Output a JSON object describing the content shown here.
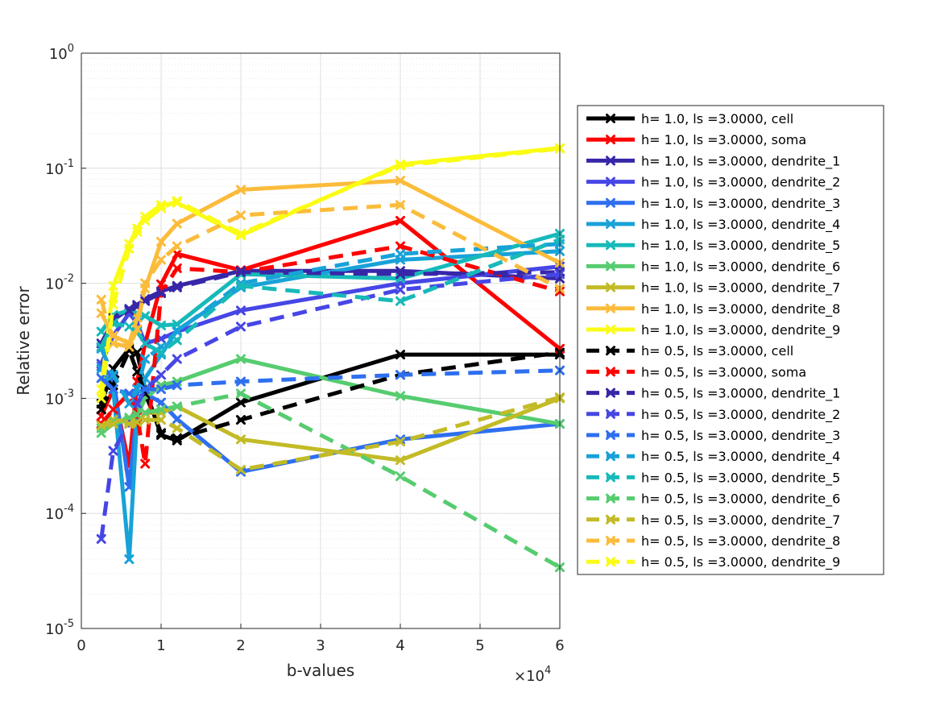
{
  "chart_data": {
    "type": "line",
    "xlabel": "b-values",
    "ylabel": "Relative error",
    "x_multiplier_label": "×10",
    "x_multiplier_exponent": "4",
    "x_scale": 10000,
    "xlim": [
      0,
      60000
    ],
    "ylim": [
      1e-05,
      1
    ],
    "y_scale": "log",
    "grid": true,
    "legend_position": "right",
    "x_ticks": [
      0,
      10000,
      20000,
      30000,
      40000,
      50000,
      60000
    ],
    "x_tick_labels": [
      "0",
      "1",
      "2",
      "3",
      "4",
      "5",
      "6"
    ],
    "y_ticks": [
      1e-05,
      0.0001,
      0.001,
      0.01,
      0.1,
      1
    ],
    "y_tick_bases": [
      "10",
      "10",
      "10",
      "10",
      "10",
      "10"
    ],
    "y_tick_exponents": [
      "-5",
      "-4",
      "-3",
      "-2",
      "-1",
      "0"
    ],
    "x": [
      2500,
      4000,
      6000,
      7000,
      8000,
      10000,
      12000,
      20000,
      40000,
      60000
    ],
    "series": [
      {
        "name": "h= 1.0, ls =3.0000, cell",
        "color": "#000000",
        "dash": "solid",
        "values": [
          0.0009,
          0.0018,
          0.0027,
          0.0025,
          0.0012,
          0.00048,
          0.00043,
          0.00092,
          0.0024,
          0.0024
        ]
      },
      {
        "name": "h= 1.0, ls =3.0000, soma",
        "color": "#ff0000",
        "dash": "solid",
        "values": [
          0.0007,
          0.0012,
          0.00026,
          0.0014,
          0.003,
          0.0098,
          0.018,
          0.013,
          0.035,
          0.0027
        ]
      },
      {
        "name": "h= 1.0, ls =3.0000, dendrite_1",
        "color": "#3727a8",
        "dash": "solid",
        "values": [
          0.003,
          0.0048,
          0.006,
          0.0065,
          0.0073,
          0.0085,
          0.0095,
          0.0128,
          0.0128,
          0.011
        ]
      },
      {
        "name": "h= 1.0, ls =3.0000, dendrite_2",
        "color": "#4646e6",
        "dash": "solid",
        "values": [
          0.002,
          0.0035,
          0.0055,
          0.0045,
          0.003,
          0.0033,
          0.0038,
          0.0058,
          0.01,
          0.014
        ]
      },
      {
        "name": "h= 1.0, ls =3.0000, dendrite_3",
        "color": "#2e6ff0",
        "dash": "solid",
        "values": [
          0.0019,
          0.0015,
          0.00017,
          0.0008,
          0.0011,
          0.00092,
          0.00066,
          0.00023,
          0.00044,
          0.0006
        ]
      },
      {
        "name": "h= 1.0, ls =3.0000, dendrite_4",
        "color": "#18a2d8",
        "dash": "solid",
        "values": [
          0.0018,
          0.0012,
          4e-05,
          0.0007,
          0.0015,
          0.0024,
          0.0039,
          0.0092,
          0.016,
          0.019
        ]
      },
      {
        "name": "h= 1.0, ls =3.0000, dendrite_5",
        "color": "#17b9b9",
        "dash": "solid",
        "values": [
          0.0038,
          0.0053,
          0.0058,
          0.0055,
          0.0052,
          0.0043,
          0.0044,
          0.012,
          0.011,
          0.027
        ]
      },
      {
        "name": "h= 1.0, ls =3.0000, dendrite_6",
        "color": "#56cc6f",
        "dash": "solid",
        "values": [
          0.0005,
          0.0006,
          0.00065,
          0.0007,
          0.001,
          0.0013,
          0.0014,
          0.0022,
          0.00105,
          0.0006
        ]
      },
      {
        "name": "h= 1.0, ls =3.0000, dendrite_7",
        "color": "#c2bb27",
        "dash": "solid",
        "values": [
          0.0006,
          0.00065,
          0.00063,
          0.0006,
          0.00075,
          0.00075,
          0.00085,
          0.00044,
          0.00029,
          0.001
        ]
      },
      {
        "name": "h= 1.0, ls =3.0000, dendrite_8",
        "color": "#fbbc3b",
        "dash": "solid",
        "values": [
          0.0055,
          0.0035,
          0.003,
          0.005,
          0.009,
          0.023,
          0.033,
          0.065,
          0.078,
          0.015
        ]
      },
      {
        "name": "h= 1.0, ls =3.0000, dendrite_9",
        "color": "#fafc14",
        "dash": "solid",
        "values": [
          0.0012,
          0.0095,
          0.022,
          0.03,
          0.038,
          0.048,
          0.05,
          0.026,
          0.108,
          0.15
        ]
      },
      {
        "name": "h= 0.5, ls =3.0000, cell",
        "color": "#000000",
        "dash": "dashed",
        "values": [
          0.0008,
          0.0013,
          0.0026,
          0.0017,
          0.0011,
          0.0005,
          0.00045,
          0.00065,
          0.0016,
          0.0025
        ]
      },
      {
        "name": "h= 0.5, ls =3.0000, soma",
        "color": "#ff0000",
        "dash": "dashed",
        "values": [
          0.0006,
          0.0008,
          0.0011,
          0.0007,
          0.00027,
          0.0082,
          0.0135,
          0.0125,
          0.021,
          0.0085
        ]
      },
      {
        "name": "h= 0.5, ls =3.0000, dendrite_1",
        "color": "#3727a8",
        "dash": "dashed",
        "values": [
          0.0028,
          0.005,
          0.0058,
          0.0063,
          0.007,
          0.0082,
          0.0092,
          0.0125,
          0.012,
          0.0125
        ]
      },
      {
        "name": "h= 0.5, ls =3.0000, dendrite_2",
        "color": "#4646e6",
        "dash": "dashed",
        "values": [
          6e-05,
          0.00035,
          0.0006,
          0.0009,
          0.0012,
          0.0016,
          0.0022,
          0.0042,
          0.0088,
          0.012
        ]
      },
      {
        "name": "h= 0.5, ls =3.0000, dendrite_3",
        "color": "#2e6ff0",
        "dash": "dashed",
        "values": [
          0.0015,
          0.0012,
          0.0011,
          0.0011,
          0.0012,
          0.0012,
          0.0013,
          0.0014,
          0.0016,
          0.00175
        ]
      },
      {
        "name": "h= 0.5, ls =3.0000, dendrite_4",
        "color": "#18a2d8",
        "dash": "dashed",
        "values": [
          0.0027,
          0.0016,
          0.0009,
          0.0012,
          0.0022,
          0.0028,
          0.0038,
          0.01,
          0.018,
          0.022
        ]
      },
      {
        "name": "h= 0.5, ls =3.0000, dendrite_5",
        "color": "#17b9b9",
        "dash": "dashed",
        "values": [
          0.0028,
          0.0045,
          0.0042,
          0.0038,
          0.003,
          0.0025,
          0.0032,
          0.0095,
          0.007,
          0.024
        ]
      },
      {
        "name": "h= 0.5, ls =3.0000, dendrite_6",
        "color": "#56cc6f",
        "dash": "dashed",
        "values": [
          0.00055,
          0.00062,
          0.00068,
          0.00072,
          0.00075,
          0.0008,
          0.00085,
          0.0011,
          0.00021,
          3.4e-05
        ]
      },
      {
        "name": "h= 0.5, ls =3.0000, dendrite_7",
        "color": "#c2bb27",
        "dash": "dashed",
        "values": [
          0.00058,
          0.0006,
          0.0006,
          0.00062,
          0.00065,
          0.00065,
          0.00055,
          0.00024,
          0.00042,
          0.00102
        ]
      },
      {
        "name": "h= 0.5, ls =3.0000, dendrite_8",
        "color": "#fbbc3b",
        "dash": "dashed",
        "values": [
          0.0072,
          0.003,
          0.0028,
          0.004,
          0.01,
          0.016,
          0.021,
          0.039,
          0.048,
          0.009
        ]
      },
      {
        "name": "h= 0.5, ls =3.0000, dendrite_9",
        "color": "#fafc14",
        "dash": "dashed",
        "values": [
          0.001,
          0.0065,
          0.02,
          0.028,
          0.035,
          0.045,
          0.052,
          0.027,
          0.105,
          0.148
        ]
      }
    ]
  }
}
